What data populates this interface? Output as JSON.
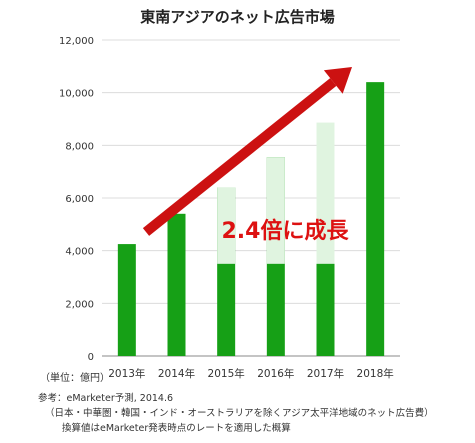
{
  "chart_data": {
    "type": "bar",
    "title": "東南アジアのネット広告市場",
    "unit_label": "（単位：億円）",
    "categories": [
      "2013年",
      "2014年",
      "2015年",
      "2016年",
      "2017年",
      "2018年"
    ],
    "values": [
      4250,
      5400,
      6400,
      7550,
      8850,
      10400
    ],
    "ylim": [
      0,
      12000
    ],
    "yticks": [
      "0",
      "2,000",
      "4,000",
      "6,000",
      "8,000",
      "10,000",
      "12,000"
    ],
    "grid": true,
    "bar_color": "#16a016",
    "band_color": "#e0f4e0",
    "band_range": [
      3500,
      5800
    ],
    "annotation": {
      "text": "2.4倍に成長",
      "color": "#dd1111",
      "arrow_color": "#cc1111"
    }
  },
  "source": {
    "line1": "参考：eMarketer予測, 2014.6",
    "line2": "（日本・中華圏・韓国・インド・オーストラリアを除くアジア太平洋地域のネット広告費）",
    "line3": "換算値はeMarketer発表時点のレートを適用した概算"
  }
}
